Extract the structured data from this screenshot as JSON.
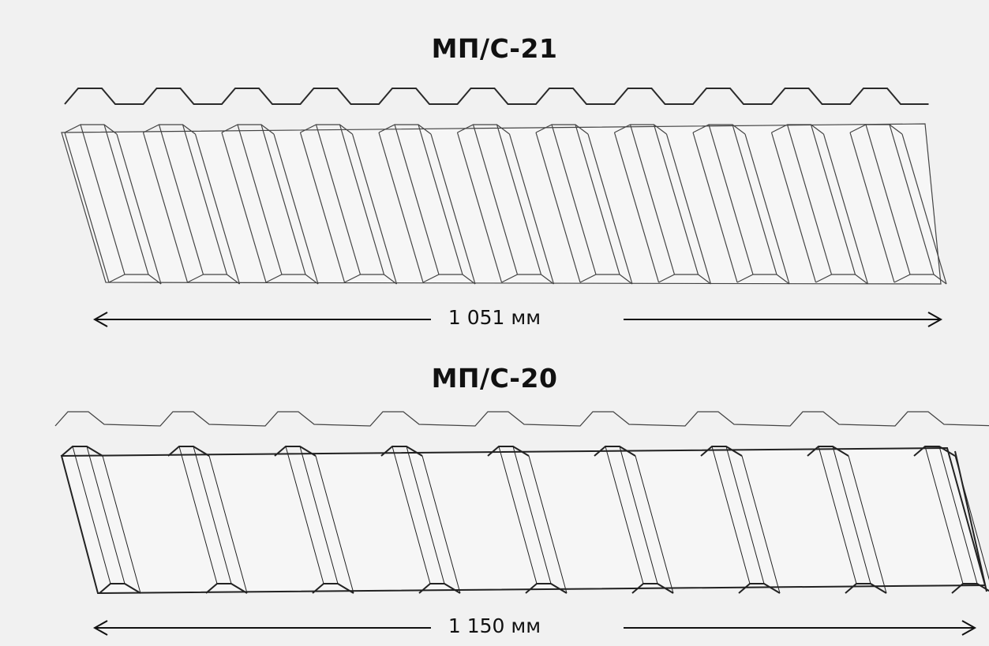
{
  "profiles": [
    {
      "name": "МП/С-21",
      "width_label": "1 051 мм",
      "ribs": 11
    },
    {
      "name": "МП/С-20",
      "width_label": "1 150 мм",
      "ribs": 9
    }
  ],
  "colors": {
    "background": "#f1f1f1",
    "line": "#2a2a2a"
  }
}
